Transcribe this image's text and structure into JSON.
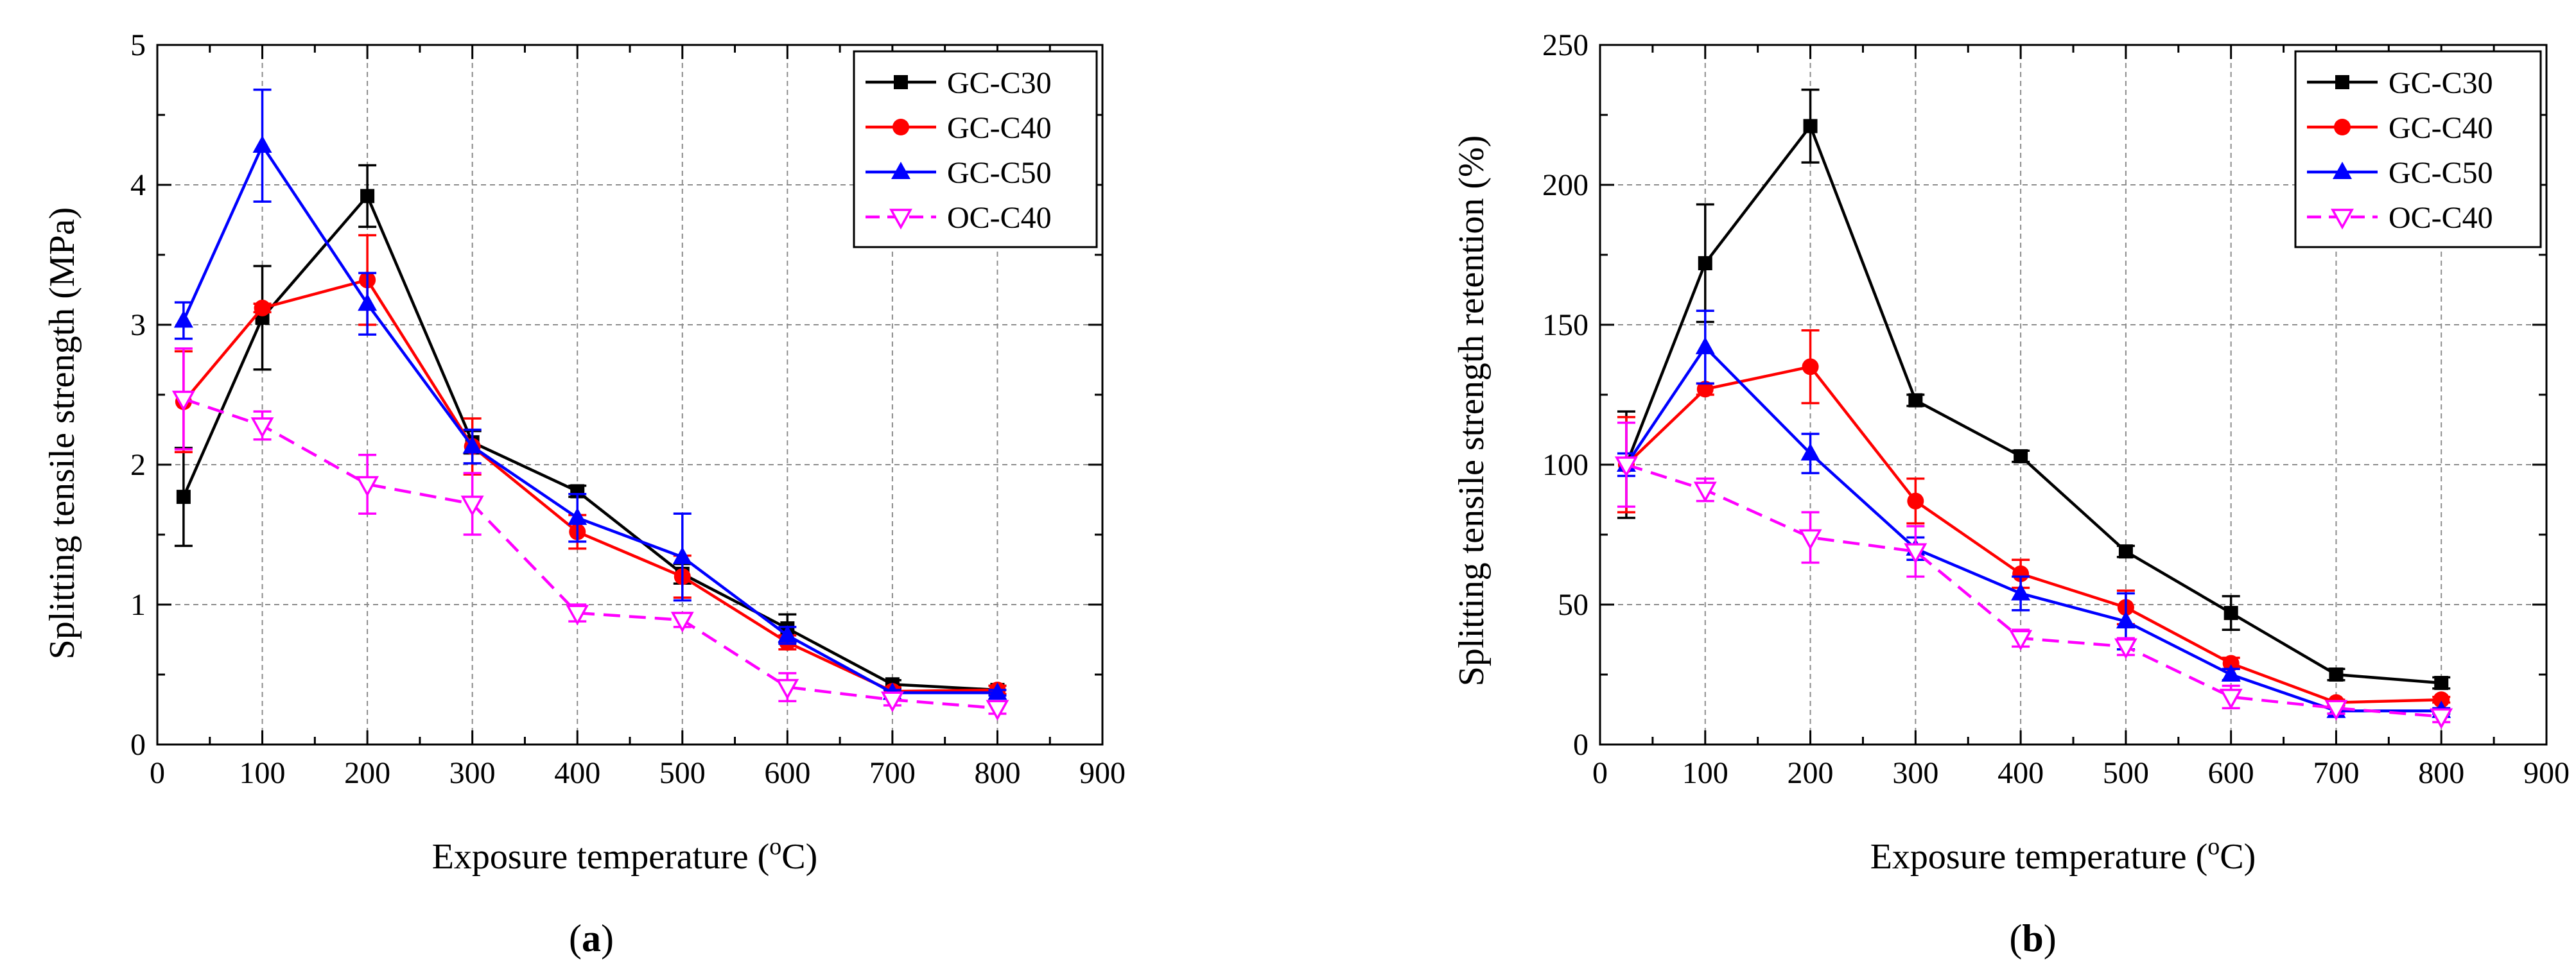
{
  "figure": {
    "panels": [
      {
        "label_open": "(",
        "label_letter": "a",
        "label_close": ")",
        "xlabel_main": "Exposure temperature (",
        "xlabel_sup": "o",
        "xlabel_end": "C)",
        "ylabel": "Splitting tensile strength (MPa)"
      },
      {
        "label_open": "(",
        "label_letter": "b",
        "label_close": ")",
        "xlabel_main": "Exposure temperature (",
        "xlabel_sup": "o",
        "xlabel_end": "C)",
        "ylabel": "Splitting tensile strength retention (%)"
      }
    ]
  },
  "chart_data": [
    {
      "type": "line",
      "xlim": [
        0,
        900
      ],
      "ylim": [
        0,
        5
      ],
      "xticks": [
        "0",
        "100",
        "200",
        "300",
        "400",
        "500",
        "600",
        "700",
        "800",
        "900"
      ],
      "yticks": [
        "0",
        "1",
        "2",
        "3",
        "4",
        "5"
      ],
      "grid": true,
      "legend_position": "top-right",
      "series": [
        {
          "name": "GC-C30",
          "color": "#000000",
          "marker": "square",
          "dashed": false,
          "x": [
            25,
            100,
            200,
            300,
            400,
            500,
            600,
            700,
            800
          ],
          "y": [
            1.77,
            3.05,
            3.92,
            2.16,
            1.81,
            1.22,
            0.83,
            0.43,
            0.39
          ],
          "err": [
            0.35,
            0.37,
            0.22,
            0.08,
            0.04,
            0.07,
            0.1,
            0.03,
            0.03
          ]
        },
        {
          "name": "GC-C40",
          "color": "#ff0000",
          "marker": "circle",
          "dashed": false,
          "x": [
            25,
            100,
            200,
            300,
            400,
            500,
            600,
            700,
            800
          ],
          "y": [
            2.45,
            3.12,
            3.32,
            2.13,
            1.52,
            1.2,
            0.73,
            0.38,
            0.39
          ],
          "err": [
            0.36,
            0.03,
            0.32,
            0.2,
            0.12,
            0.15,
            0.05,
            0.03,
            0.03
          ]
        },
        {
          "name": "GC-C50",
          "color": "#0000ff",
          "marker": "triangle-up",
          "dashed": false,
          "x": [
            25,
            100,
            200,
            300,
            400,
            500,
            600,
            700,
            800
          ],
          "y": [
            3.03,
            4.28,
            3.15,
            2.13,
            1.62,
            1.34,
            0.78,
            0.37,
            0.37
          ],
          "err": [
            0.13,
            0.4,
            0.22,
            0.12,
            0.17,
            0.31,
            0.06,
            0.02,
            0.02
          ]
        },
        {
          "name": "OC-C40",
          "color": "#ff00ff",
          "marker": "triangle-down-open",
          "dashed": true,
          "x": [
            25,
            100,
            200,
            300,
            400,
            500,
            600,
            700,
            800
          ],
          "y": [
            2.47,
            2.28,
            1.86,
            1.72,
            0.94,
            0.89,
            0.41,
            0.32,
            0.26
          ],
          "err": [
            0.36,
            0.1,
            0.21,
            0.22,
            0.06,
            0.05,
            0.1,
            0.04,
            0.04
          ]
        }
      ]
    },
    {
      "type": "line",
      "xlim": [
        0,
        900
      ],
      "ylim": [
        0,
        250
      ],
      "xticks": [
        "0",
        "100",
        "200",
        "300",
        "400",
        "500",
        "600",
        "700",
        "800",
        "900"
      ],
      "yticks": [
        "0",
        "50",
        "100",
        "150",
        "200",
        "250"
      ],
      "grid": true,
      "legend_position": "top-right",
      "series": [
        {
          "name": "GC-C30",
          "color": "#000000",
          "marker": "square",
          "dashed": false,
          "x": [
            25,
            100,
            200,
            300,
            400,
            500,
            600,
            700,
            800
          ],
          "y": [
            100,
            172,
            221,
            123,
            103,
            69,
            47,
            25,
            22
          ],
          "err": [
            19,
            21,
            13,
            2,
            2,
            2,
            6,
            2,
            2
          ]
        },
        {
          "name": "GC-C40",
          "color": "#ff0000",
          "marker": "circle",
          "dashed": false,
          "x": [
            25,
            100,
            200,
            300,
            400,
            500,
            600,
            700,
            800
          ],
          "y": [
            100,
            127,
            135,
            87,
            61,
            49,
            29,
            15,
            16
          ],
          "err": [
            17,
            2,
            13,
            8,
            5,
            6,
            2,
            1,
            1
          ]
        },
        {
          "name": "GC-C50",
          "color": "#0000ff",
          "marker": "triangle-up",
          "dashed": false,
          "x": [
            25,
            100,
            200,
            300,
            400,
            500,
            600,
            700,
            800
          ],
          "y": [
            100,
            142,
            104,
            70,
            54,
            44,
            25,
            12,
            12
          ],
          "err": [
            4,
            13,
            7,
            4,
            6,
            10,
            2,
            1,
            1
          ]
        },
        {
          "name": "OC-C40",
          "color": "#ff00ff",
          "marker": "triangle-down-open",
          "dashed": true,
          "x": [
            25,
            100,
            200,
            300,
            400,
            500,
            600,
            700,
            800
          ],
          "y": [
            100,
            91,
            74,
            69,
            38,
            35,
            17,
            13,
            10
          ],
          "err": [
            15,
            4,
            9,
            9,
            3,
            3,
            4,
            2,
            2
          ]
        }
      ]
    }
  ]
}
